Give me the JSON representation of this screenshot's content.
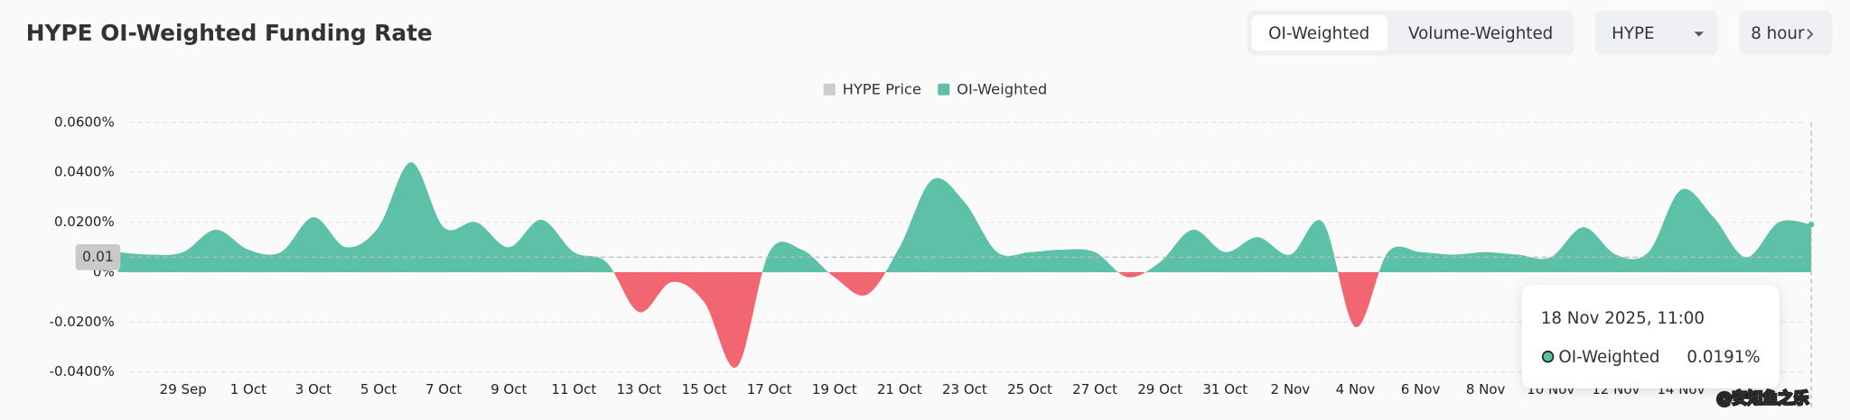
{
  "title": "HYPE OI-Weighted Funding Rate",
  "controls": {
    "toggle": [
      "OI-Weighted",
      "Volume-Weighted"
    ],
    "asset": "HYPE",
    "interval": "8 hour"
  },
  "watermark": "@安知鱼之乐",
  "chart_data": {
    "type": "area",
    "categories": [
      null,
      null,
      "29 Sep",
      null,
      "1 Oct",
      null,
      "3 Oct",
      null,
      "5 Oct",
      null,
      "7 Oct",
      null,
      "9 Oct",
      null,
      "11 Oct",
      null,
      "13 Oct",
      null,
      "15 Oct",
      null,
      "17 Oct",
      null,
      "19 Oct",
      null,
      "21 Oct",
      null,
      "23 Oct",
      null,
      "25 Oct",
      null,
      "27 Oct",
      null,
      "29 Oct",
      null,
      "31 Oct",
      null,
      "2 Nov",
      null,
      "4 Nov",
      null,
      "6 Nov",
      null,
      "8 Nov",
      null,
      "10 Nov",
      null,
      "12 Nov",
      null,
      "14 Nov",
      null,
      null,
      null,
      null
    ],
    "series": [
      {
        "name": "OI-Weighted",
        "color": "#5cc1a6",
        "negative_color": "#f26672",
        "values": [
          0.008,
          0.007,
          0.008,
          0.017,
          0.009,
          0.008,
          0.022,
          0.01,
          0.018,
          0.044,
          0.018,
          0.02,
          0.01,
          0.021,
          0.008,
          0.004,
          -0.016,
          -0.004,
          -0.012,
          -0.038,
          0.008,
          0.009,
          -0.002,
          -0.009,
          0.01,
          0.037,
          0.028,
          0.008,
          0.008,
          0.009,
          0.008,
          -0.002,
          0.004,
          0.017,
          0.008,
          0.014,
          0.007,
          0.02,
          -0.022,
          0.008,
          0.008,
          0.007,
          0.008,
          0.007,
          0.006,
          0.018,
          0.007,
          0.008,
          0.033,
          0.022,
          0.006,
          0.02,
          0.0191
        ],
        "value_labels": [
          null,
          null,
          null,
          null,
          null,
          null,
          null,
          null,
          null,
          null,
          null,
          null,
          null,
          null,
          null,
          null,
          null,
          null,
          null,
          null,
          null,
          null,
          null,
          null,
          null,
          null,
          null,
          null,
          null,
          null,
          null,
          null,
          null,
          null,
          null,
          null,
          null,
          null,
          null,
          null,
          null,
          null,
          null,
          null,
          null,
          null,
          null,
          null,
          null,
          null,
          null,
          null,
          "0.0191%"
        ]
      },
      {
        "name": "HYPE Price",
        "color": "#cccccc",
        "visible": false
      }
    ],
    "ylim": [
      -0.04,
      0.06
    ],
    "yticks": [
      {
        "value": -0.04,
        "label": "-0.0400%"
      },
      {
        "value": -0.02,
        "label": "-0.0200%"
      },
      {
        "value": 0,
        "label": "0%"
      },
      {
        "value": 0.02,
        "label": "0.0200%"
      },
      {
        "value": 0.04,
        "label": "0.0400%"
      },
      {
        "value": 0.06,
        "label": "0.0600%"
      }
    ],
    "grid": true,
    "crosshair": {
      "value": 0.006,
      "label": "0.01"
    },
    "tooltip": {
      "title": "18 Nov 2025, 11:00"
    }
  }
}
